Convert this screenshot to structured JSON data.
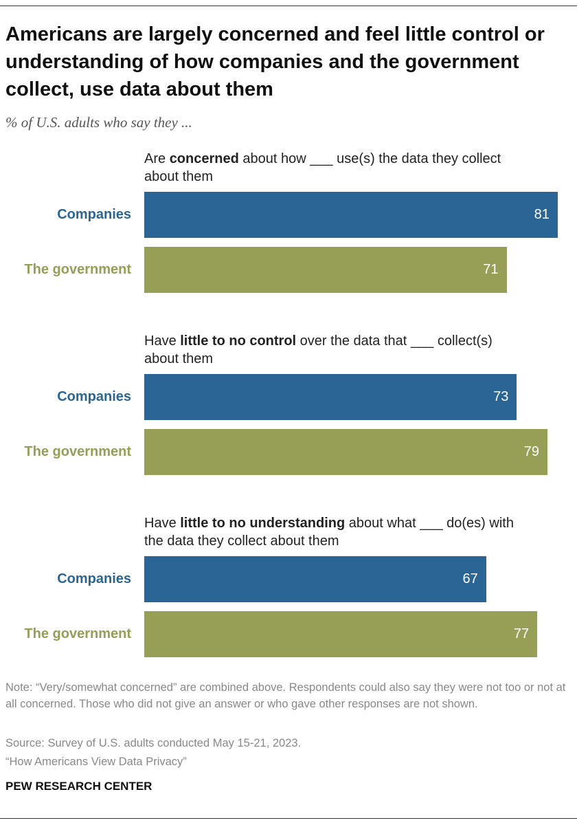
{
  "title": "Americans are largely concerned and feel little control or understanding of how companies and the government collect, use data about them",
  "subtitle": "% of U.S. adults who say they ...",
  "chart_data": [
    {
      "type": "bar",
      "title": [
        "Are ",
        "concerned",
        " about how ___ use(s) the data they collect about them"
      ],
      "categories": [
        "Companies",
        "The government"
      ],
      "values": [
        81,
        71
      ],
      "colors": [
        "#2a6595",
        "#969f55"
      ]
    },
    {
      "type": "bar",
      "title": [
        "Have ",
        "little to no control",
        " over the data that ___ collect(s) about them"
      ],
      "categories": [
        "Companies",
        "The government"
      ],
      "values": [
        73,
        79
      ],
      "colors": [
        "#2a6595",
        "#969f55"
      ]
    },
    {
      "type": "bar",
      "title": [
        "Have ",
        "little to no understanding",
        " about what ___ do(es) with the data they collect about them"
      ],
      "categories": [
        "Companies",
        "The government"
      ],
      "values": [
        67,
        77
      ],
      "colors": [
        "#2a6595",
        "#969f55"
      ]
    }
  ],
  "note": "Note: “Very/somewhat concerned” are combined above. Respondents could also say they were not too or not at all concerned. Those who did not give an answer or who gave other responses are not shown.",
  "source": "Source: Survey of U.S. adults conducted May 15-21, 2023.",
  "report": "“How Americans View Data Privacy”",
  "brand": "PEW RESEARCH CENTER"
}
